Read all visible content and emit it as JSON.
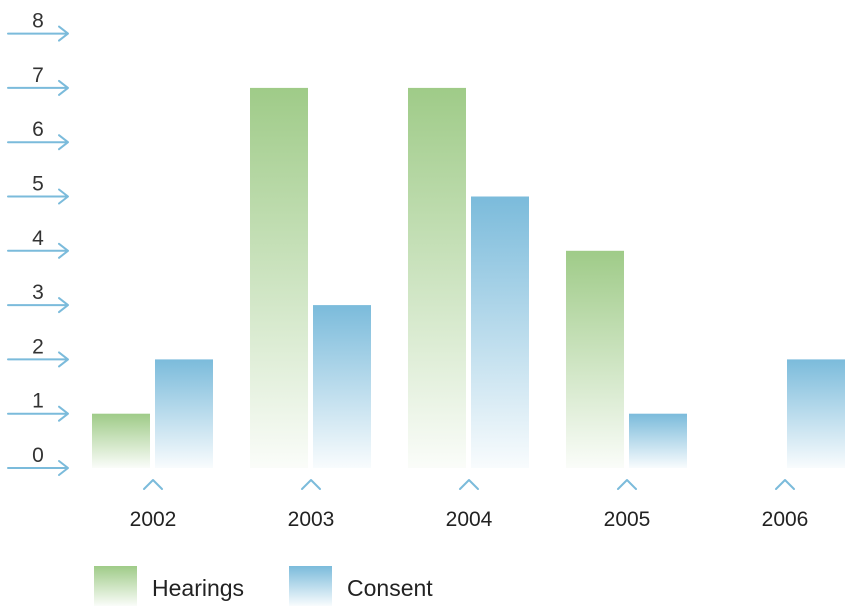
{
  "chart_data": {
    "type": "bar",
    "categories": [
      "2002",
      "2003",
      "2004",
      "2005",
      "2006"
    ],
    "series": [
      {
        "name": "Hearings",
        "values": [
          1,
          7,
          7,
          4,
          0
        ]
      },
      {
        "name": "Consent",
        "values": [
          2,
          3,
          5,
          1,
          2
        ]
      }
    ],
    "ylim": [
      0,
      8
    ],
    "yticks": [
      "0",
      "1",
      "2",
      "3",
      "4",
      "5",
      "6",
      "7",
      "8"
    ],
    "legend_position": "bottom-left",
    "grid": false
  },
  "colors": {
    "hearings": "#9fcb88",
    "consent": "#7bbbdb",
    "axis_arrow": "#7bbbdb"
  }
}
